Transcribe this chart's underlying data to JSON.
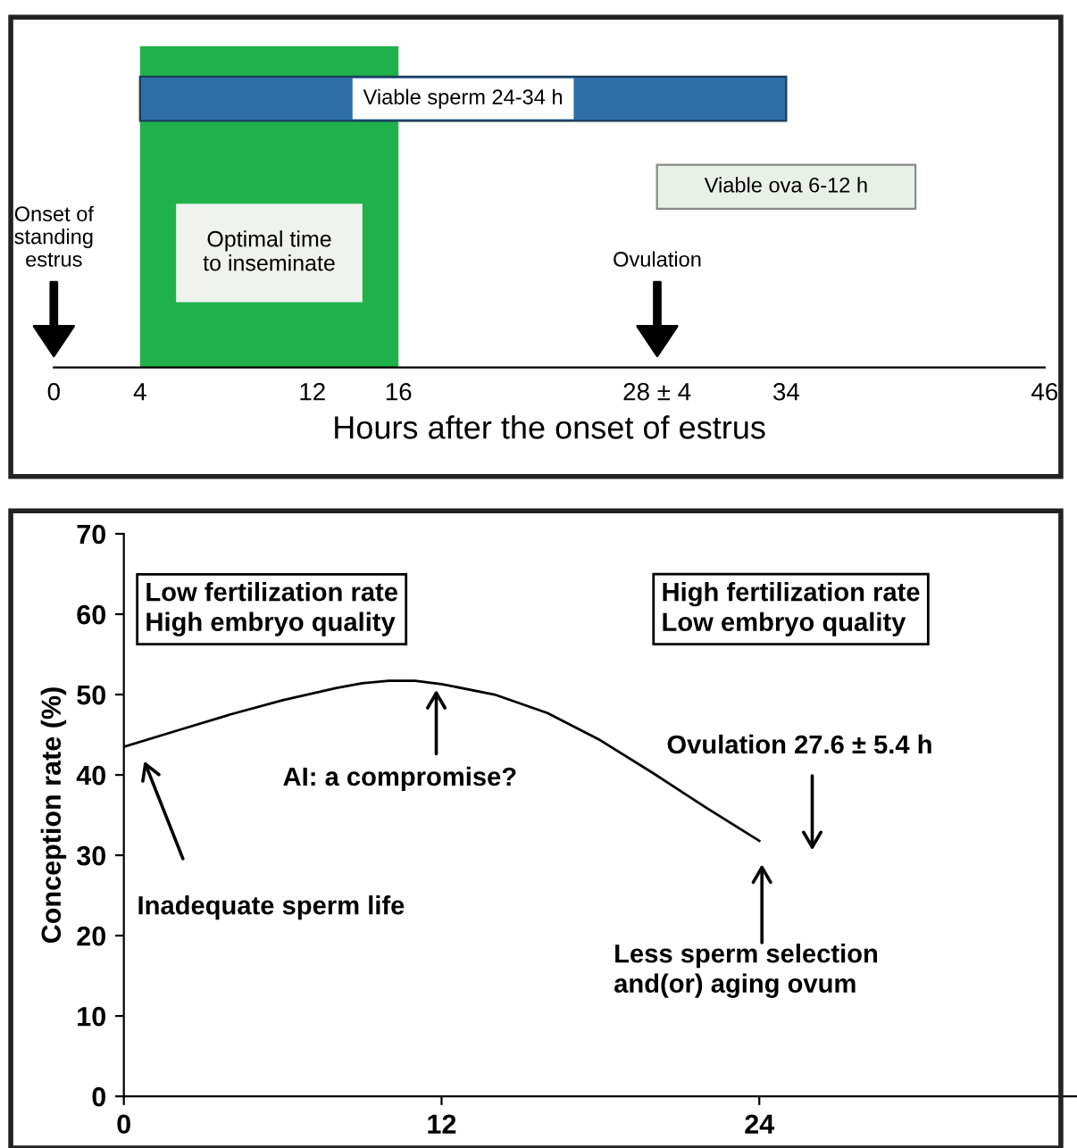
{
  "chart_data": [
    {
      "type": "bar",
      "orientation": "horizontal",
      "categories": [
        null,
        null
      ],
      "values": [
        30,
        12
      ],
      "base": [
        4,
        28
      ],
      "colors": [
        "#2e6fa7",
        "#e9f0e8"
      ],
      "value_labels": [
        "Viable sperm 24-34 h",
        "Viable ova 6-12 h"
      ],
      "xlabel": "Hours after the onset of estrus",
      "xlim": [
        0,
        46
      ],
      "xticks": [
        0,
        4,
        12,
        16,
        {
          "value": 28,
          "label": "28 ± 4"
        },
        34,
        46
      ],
      "tick_labels": "x",
      "bands": [
        {
          "axis": "x",
          "from": 4,
          "to": 16,
          "label": "Optimal time\nto inseminate",
          "color": "#21b14b"
        }
      ],
      "annotations": [
        "Onset of\nstanding\nestrus",
        "Ovulation"
      ],
      "legend": false,
      "grid": false
    },
    {
      "type": "line",
      "ylabel": "Conception rate (%)",
      "x": [
        0,
        2,
        4,
        6,
        8,
        9,
        10,
        11,
        12,
        14,
        16,
        18,
        20,
        22,
        24
      ],
      "values": [
        43.5,
        45.5,
        47.5,
        49.3,
        50.8,
        51.4,
        51.7,
        51.7,
        51.3,
        50,
        47.7,
        44.3,
        40.2,
        35.9,
        31.8
      ],
      "color": "#000000",
      "marker": "none",
      "line_style": "solid",
      "xlim": [
        0,
        36
      ],
      "xticks": [
        0,
        12,
        24
      ],
      "ylim": [
        0,
        70
      ],
      "yticks": [
        0,
        10,
        20,
        30,
        40,
        50,
        60,
        70
      ],
      "annotations": [
        "Low fertilization rate\nHigh embryo quality",
        "High fertilization rate\nLow embryo quality",
        "Inadequate sperm life",
        {
          "text": "AI: a compromise?",
          "x": 11.8,
          "y": 51.2
        },
        "Less sperm selection\nand(or) aging ovum",
        "Ovulation 27.6 ± 5.4 h"
      ],
      "legend": false,
      "grid": false
    }
  ]
}
